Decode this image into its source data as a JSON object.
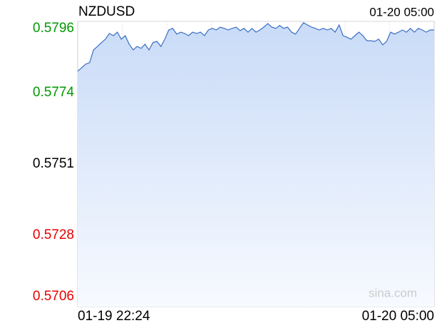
{
  "chart_data": {
    "type": "line",
    "title": "NZDUSD",
    "time": "01-20 05:00",
    "watermark": "sina.com",
    "categories": [
      "01-19 22:24",
      null,
      null,
      null,
      null,
      null,
      null,
      null,
      null,
      null,
      null,
      null,
      null,
      null,
      null,
      null,
      null,
      null,
      null,
      null,
      null,
      null,
      null,
      null,
      null,
      null,
      null,
      null,
      null,
      null,
      null,
      null,
      null,
      null,
      null,
      null,
      null,
      null,
      null,
      null,
      null,
      null,
      null,
      null,
      null,
      null,
      null,
      null,
      null,
      null,
      null,
      null,
      null,
      null,
      null,
      null,
      null,
      null,
      null,
      null,
      null,
      null,
      null,
      null,
      null,
      null,
      null,
      null,
      null,
      null,
      null,
      null,
      null,
      null,
      null,
      null,
      null,
      null,
      null,
      null,
      null,
      null,
      null,
      null,
      null,
      null,
      null,
      null,
      null,
      null,
      "01-20 05:00"
    ],
    "values": [
      0.57803,
      0.57814,
      0.57825,
      0.5783,
      0.5787,
      0.57881,
      0.57893,
      0.57904,
      0.57922,
      0.57915,
      0.57926,
      0.57904,
      0.57915,
      0.57888,
      0.5787,
      0.57881,
      0.57875,
      0.57888,
      0.5787,
      0.57893,
      0.57897,
      0.57881,
      0.57904,
      0.57933,
      0.57938,
      0.5792,
      0.57926,
      0.57922,
      0.57915,
      0.57926,
      0.57922,
      0.57926,
      0.57915,
      0.57933,
      0.57938,
      0.57933,
      0.57942,
      0.57938,
      0.57933,
      0.57938,
      0.57942,
      0.57931,
      0.57938,
      0.57926,
      0.57938,
      0.57926,
      0.57933,
      0.57942,
      0.57953,
      0.57942,
      0.57938,
      0.57947,
      0.57938,
      0.57942,
      0.57926,
      0.5792,
      0.57938,
      0.57956,
      0.57949,
      0.57942,
      0.57938,
      0.57933,
      0.57938,
      0.57933,
      0.57938,
      0.57926,
      0.57949,
      0.57915,
      0.5791,
      0.57904,
      0.57915,
      0.57926,
      0.57915,
      0.57899,
      0.57899,
      0.57897,
      0.57904,
      0.57886,
      0.57897,
      0.57926,
      0.5792,
      0.57926,
      0.57933,
      0.57926,
      0.57938,
      0.57926,
      0.57938,
      0.57933,
      0.57926,
      0.57933,
      0.57933
    ],
    "color": "#3a6fc4",
    "ylim": [
      0.5706,
      0.5796
    ],
    "yticks": [
      0.5706,
      {
        "value": 0.57285,
        "label": "0.5728"
      },
      0.5751,
      {
        "value": 0.57735,
        "label": "0.5774"
      },
      0.5796
    ],
    "up_color": "#009900",
    "flat_color": "#000000",
    "down_color": "#e60000",
    "grid": true
  }
}
